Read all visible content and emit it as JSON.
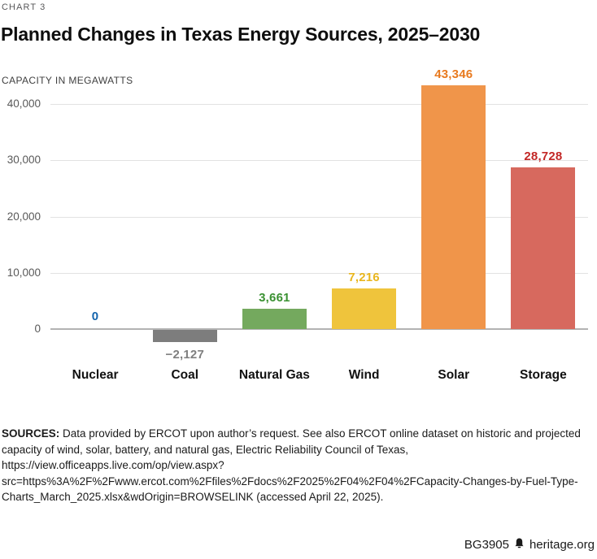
{
  "header": {
    "kicker": "CHART 3",
    "title": "Planned Changes in Texas Energy Sources, 2025–2030",
    "axis_title": "CAPACITY IN MEGAWATTS"
  },
  "chart_data": {
    "type": "bar",
    "title": "Planned Changes in Texas Energy Sources, 2025–2030",
    "ylabel": "CAPACITY IN MEGAWATTS",
    "categories": [
      "Nuclear",
      "Coal",
      "Natural Gas",
      "Wind",
      "Solar",
      "Storage"
    ],
    "values": [
      0,
      -2127,
      3661,
      7216,
      43346,
      28728
    ],
    "data_labels": [
      "0",
      "−2,127",
      "3,661",
      "7,216",
      "43,346",
      "28,728"
    ],
    "bar_colors": [
      "#1464ad",
      "#7d7d7d",
      "#74a95e",
      "#efc43c",
      "#f0954a",
      "#d7695e"
    ],
    "data_label_colors": [
      "#1464ad",
      "#7f7f7f",
      "#3a9132",
      "#e9b61e",
      "#e87a1f",
      "#c32827"
    ],
    "yticks": [
      0,
      10000,
      20000,
      30000,
      40000
    ],
    "ytick_labels": [
      "0",
      "10,000",
      "20,000",
      "30,000",
      "40,000"
    ],
    "ylim": [
      -4500,
      45000
    ],
    "grid": true,
    "legend": "none",
    "gridline_color": "#e2e2e2",
    "zeroline_color": "#b3b3b3"
  },
  "sources": {
    "label": "SOURCES:",
    "text": " Data provided by ERCOT upon author’s request. See also ERCOT online dataset on historic and projected capacity of wind, solar, battery, and natural gas, Electric Reliability Council of Texas, https://view.officeapps.live.com/op/view.aspx?src=https%3A%2F%2Fwww.ercot.com%2Ffiles%2Fdocs%2F2025%2F04%2F04%2FCapacity-Changes-by-Fuel-Type-Charts_March_2025.xlsx&wdOrigin=BROWSELINK (accessed April 22, 2025)."
  },
  "footer": {
    "doc_id": "BG3905",
    "site": "heritage.org"
  }
}
